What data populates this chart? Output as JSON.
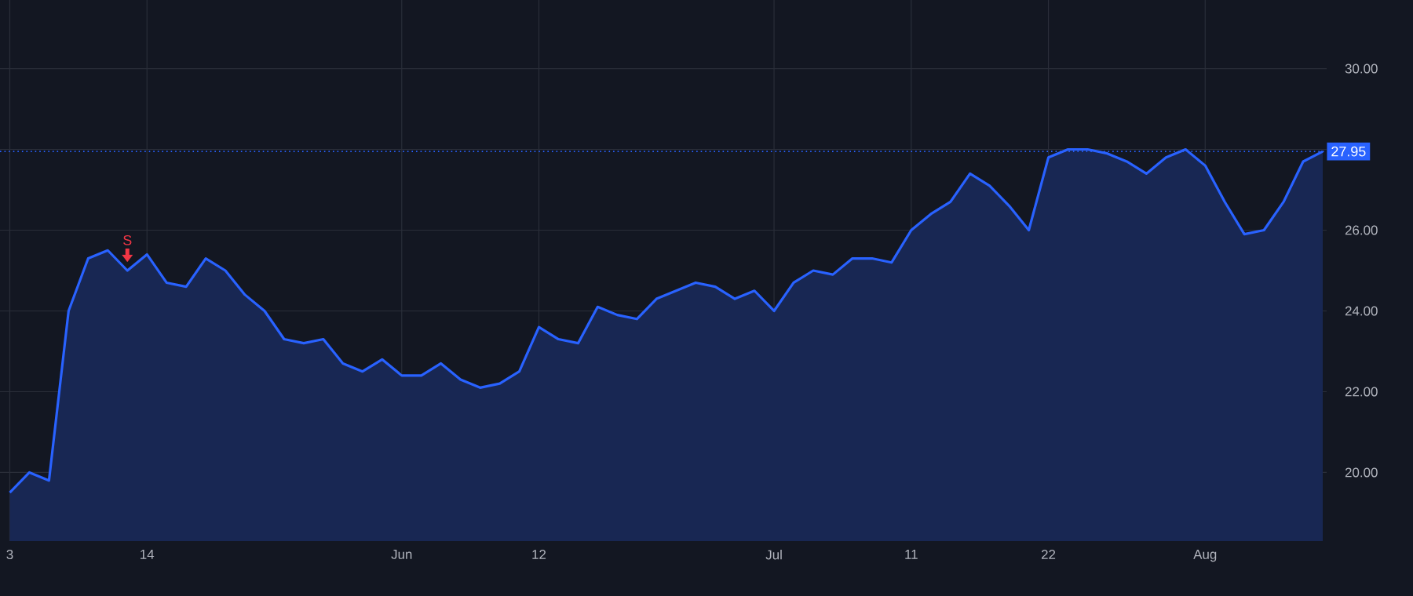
{
  "chart_data": {
    "type": "area",
    "categories": [
      "3",
      null,
      null,
      null,
      null,
      null,
      null,
      "14",
      null,
      null,
      null,
      null,
      null,
      null,
      null,
      null,
      null,
      null,
      null,
      null,
      "Jun",
      null,
      null,
      null,
      null,
      null,
      null,
      "12",
      null,
      null,
      null,
      null,
      null,
      null,
      null,
      null,
      null,
      null,
      null,
      "Jul",
      null,
      null,
      null,
      null,
      null,
      null,
      "11",
      null,
      null,
      null,
      null,
      null,
      null,
      "22",
      null,
      null,
      null,
      null,
      null,
      null,
      null,
      "Aug",
      null,
      null,
      null,
      null,
      null,
      null
    ],
    "series": [
      {
        "color": "#2962ff",
        "values": [
          19.5,
          20.0,
          19.8,
          24.0,
          25.3,
          25.5,
          25.0,
          25.4,
          24.7,
          24.6,
          25.3,
          25.0,
          24.4,
          24.0,
          23.3,
          23.2,
          23.3,
          22.7,
          22.5,
          22.8,
          22.4,
          22.4,
          22.7,
          22.3,
          22.1,
          22.2,
          22.5,
          23.6,
          23.3,
          23.2,
          24.1,
          23.9,
          23.8,
          24.3,
          24.5,
          24.7,
          24.6,
          24.3,
          24.5,
          24.0,
          24.7,
          25.0,
          24.9,
          25.3,
          25.3,
          25.2,
          26.0,
          26.4,
          26.7,
          27.4,
          27.1,
          26.6,
          26.0,
          27.8,
          28.0,
          28.0,
          27.9,
          27.7,
          27.4,
          27.8,
          28.0,
          27.6,
          26.7,
          25.9,
          26.0,
          26.7,
          27.7,
          27.95
        ]
      }
    ],
    "ylim": [
      18.3,
      31.7
    ],
    "yticks": [
      {
        "value": 20,
        "label": "20.00"
      },
      {
        "value": 22,
        "label": "22.00"
      },
      {
        "value": 24,
        "label": "24.00"
      },
      {
        "value": 26,
        "label": "26.00"
      },
      {
        "value": 28,
        "label": null
      },
      {
        "value": 30,
        "label": "30.00"
      }
    ],
    "grid": true,
    "marker": "none",
    "line_style": "solid",
    "ref_lines": [
      {
        "axis": "y",
        "value": 27.95,
        "label": "27.95",
        "color": "#2962ff",
        "line_style": "dotted"
      }
    ],
    "annotations": [
      {
        "text": "S",
        "y": 25.0
      }
    ]
  }
}
